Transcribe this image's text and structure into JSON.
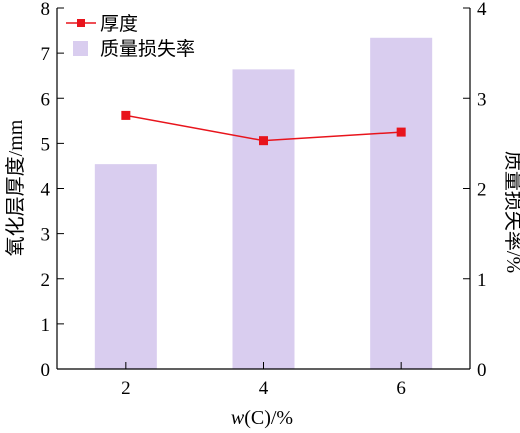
{
  "chart_data": {
    "type": "bar",
    "categories": [
      "2",
      "4",
      "6"
    ],
    "x_values": [
      2,
      4,
      6
    ],
    "xlim": [
      1,
      7
    ],
    "xlabel_italic": "w",
    "xlabel_rest": "(C)/%",
    "ylabel_left": "氧化层厚度/mm",
    "ylabel_right": "质量损失率/%",
    "ylim_left": [
      0,
      8
    ],
    "ylim_right": [
      0,
      4
    ],
    "y_ticks_left": [
      0,
      1,
      2,
      3,
      4,
      5,
      6,
      7,
      8
    ],
    "y_ticks_right": [
      0,
      1,
      2,
      3,
      4
    ],
    "grid": false,
    "legend_position": "top-left",
    "series": [
      {
        "name": "厚度",
        "kind": "line",
        "axis": "left",
        "marker": "square",
        "color": "#e8141c",
        "values": [
          5.62,
          5.06,
          5.25
        ]
      },
      {
        "name": "质量损失率",
        "kind": "bar",
        "axis": "right",
        "color": "#d9cdef",
        "values": [
          2.27,
          3.32,
          3.67
        ]
      }
    ]
  }
}
